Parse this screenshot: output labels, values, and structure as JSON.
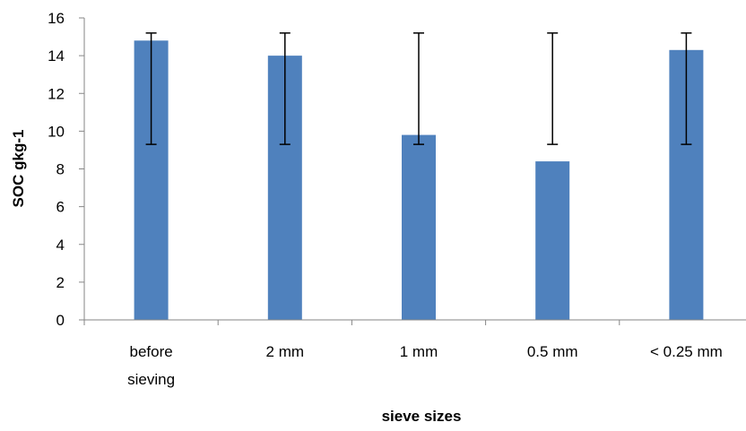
{
  "chart_data": {
    "type": "bar",
    "categories": [
      [
        "before",
        "sieving"
      ],
      [
        "2 mm"
      ],
      [
        "1 mm"
      ],
      [
        "0.5 mm"
      ],
      [
        "< 0.25 mm"
      ]
    ],
    "values": [
      14.8,
      14.0,
      9.8,
      8.4,
      14.3
    ],
    "error_bars": [
      {
        "low": 9.3,
        "high": 15.2
      },
      {
        "low": 9.3,
        "high": 15.2
      },
      {
        "low": 9.3,
        "high": 15.2
      },
      {
        "low": 9.3,
        "high": 15.2
      },
      {
        "low": 9.3,
        "high": 15.2
      }
    ],
    "xlabel": "sieve sizes",
    "ylabel": "SOC gkg-1",
    "ylim": [
      0,
      16
    ],
    "yticks": [
      0,
      2,
      4,
      6,
      8,
      10,
      12,
      14,
      16
    ],
    "grid": false,
    "legend": "none",
    "bar_color": "#4f81bd"
  }
}
